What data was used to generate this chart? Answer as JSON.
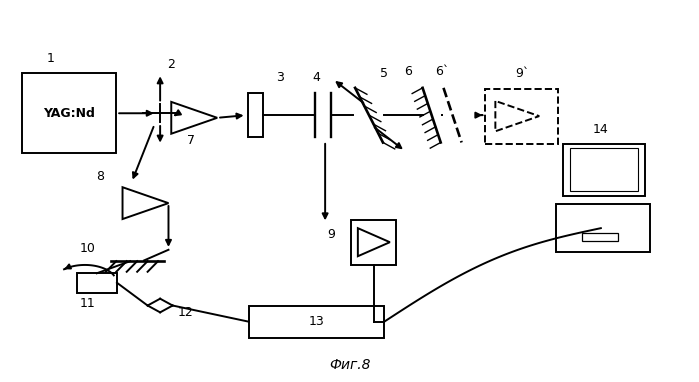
{
  "bg_color": "#ffffff",
  "line_color": "#000000",
  "fig_label": "Фиг.8",
  "lw": 1.4
}
